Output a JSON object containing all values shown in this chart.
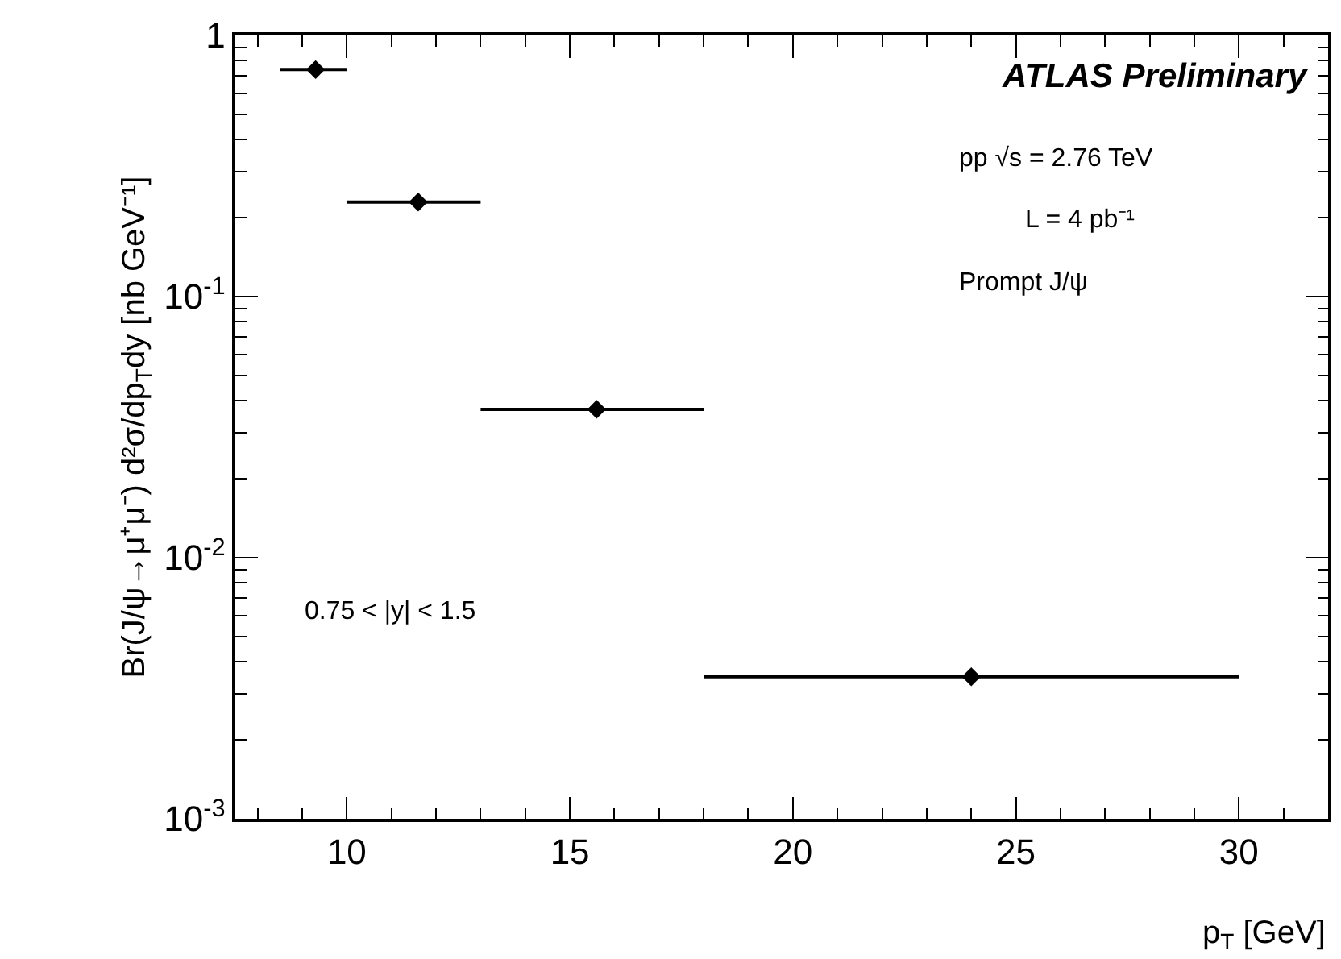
{
  "chart_data": {
    "type": "scatter",
    "xlabel": "p$_{T}$ [GeV]",
    "ylabel": "Br(J/ψ→μ⁺μ⁻) d²σ/dp$_{T}$dy [nb GeV⁻¹]",
    "annotations": [
      "ATLAS Preliminary",
      "pp √s = 2.76 TeV",
      "L = 4 pb⁻¹",
      "Prompt J/ψ",
      "0.75 < |y| < 1.5"
    ],
    "x": [
      9.3,
      11.6,
      15.6,
      24
    ],
    "series": [
      {
        "color": "#000000",
        "values": [
          0.74,
          0.23,
          0.037,
          0.0035
        ],
        "xerrors": [
          [
            8.5,
            10
          ],
          [
            10,
            13
          ],
          [
            13,
            18
          ],
          [
            18,
            30
          ]
        ]
      }
    ],
    "xlim": [
      7.5,
      32
    ],
    "xticks": [
      10,
      15,
      20,
      25,
      30
    ],
    "ylim": [
      0.001,
      1
    ],
    "yticks": [
      {
        "value": 0.001,
        "label": "10$^{-3}$"
      },
      {
        "value": 0.01,
        "label": "10$^{-2}$"
      },
      {
        "value": 0.1,
        "label": "10$^{-1}$"
      },
      1
    ],
    "log": "y",
    "grid": false,
    "marker": "diamond"
  }
}
